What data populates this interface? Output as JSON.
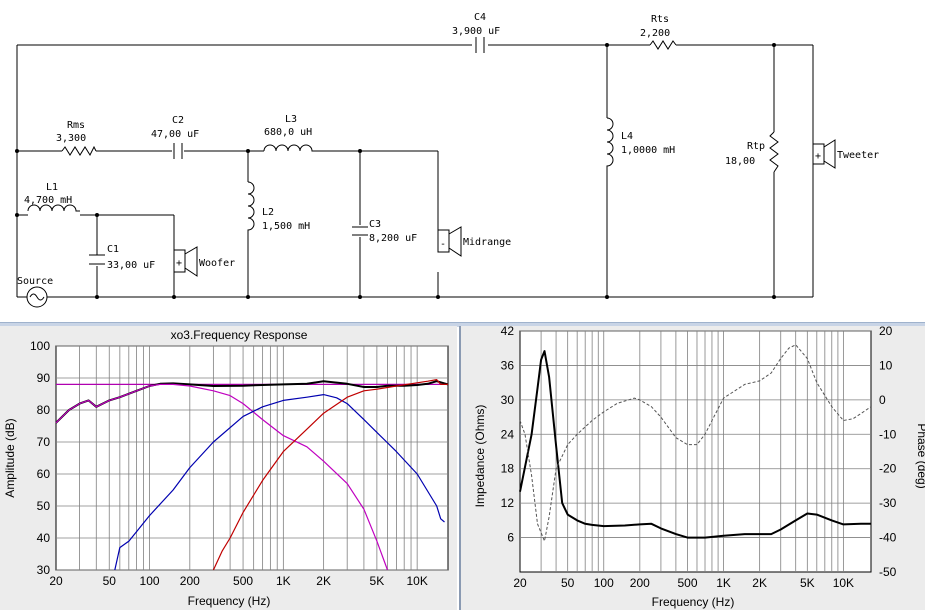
{
  "schematic": {
    "components": [
      {
        "id": "Rms",
        "value": "3,300"
      },
      {
        "id": "C2",
        "value": "47,00 uF"
      },
      {
        "id": "L3",
        "value": "680,0 uH"
      },
      {
        "id": "L1",
        "value": "4,700 mH"
      },
      {
        "id": "C1",
        "value": "33,00 uF"
      },
      {
        "id": "L2",
        "value": "1,500 mH"
      },
      {
        "id": "C3",
        "value": "8,200 uF"
      },
      {
        "id": "C4",
        "value": "3,900 uF"
      },
      {
        "id": "Rts",
        "value": "2,200"
      },
      {
        "id": "L4",
        "value": "1,0000 mH"
      },
      {
        "id": "Rtp",
        "value": "18,00"
      }
    ],
    "source_label": "Source",
    "speakers": [
      "Woofer",
      "Midrange",
      "Tweeter"
    ],
    "polarity": {
      "woofer": "+",
      "midrange": "-",
      "tweeter": "+"
    }
  },
  "chart_data": [
    {
      "type": "line",
      "title": "xo3.Frequency Response",
      "xlabel": "Frequency (Hz)",
      "ylabel": "Amplitude (dB)",
      "xscale": "log",
      "xlim": [
        20,
        17000
      ],
      "ylim": [
        30,
        100
      ],
      "x_ticks": [
        20,
        50,
        100,
        200,
        500,
        1000,
        2000,
        5000,
        10000
      ],
      "x_tick_labels": [
        "20",
        "50",
        "100",
        "200",
        "500",
        "1K",
        "2K",
        "5K",
        "10K"
      ],
      "y_ticks": [
        30,
        40,
        50,
        60,
        70,
        80,
        90,
        100
      ],
      "grid": true,
      "reference_lines": [
        {
          "y": 88,
          "color": "#b000b0"
        }
      ],
      "series": [
        {
          "color": "#000000",
          "x": [
            20,
            25,
            30,
            35,
            40,
            50,
            60,
            80,
            100,
            120,
            150,
            200,
            300,
            500,
            700,
            1000,
            1500,
            2000,
            3000,
            4000,
            5000,
            6000,
            8000,
            10000,
            12000,
            14000,
            17000
          ],
          "y": [
            76,
            80,
            82,
            83,
            81,
            83,
            84,
            86,
            87.5,
            88.2,
            88.3,
            88,
            87.5,
            87.6,
            87.8,
            88,
            88.2,
            89,
            88.2,
            87.2,
            87.2,
            87.6,
            87.6,
            87.8,
            88.2,
            89,
            88
          ]
        },
        {
          "color": "#c000c0",
          "x": [
            20,
            25,
            30,
            35,
            40,
            50,
            60,
            80,
            100,
            120,
            150,
            200,
            300,
            400,
            500,
            700,
            1000,
            1500,
            2000,
            3000,
            4000,
            5000,
            6000
          ],
          "y": [
            76,
            80,
            82,
            83,
            81,
            83,
            84,
            86,
            87.5,
            88,
            88,
            87.5,
            86,
            84.5,
            82,
            77,
            72,
            68.5,
            64,
            57,
            49,
            39,
            30
          ]
        },
        {
          "color": "#0000b0",
          "x": [
            55,
            60,
            70,
            80,
            100,
            150,
            200,
            300,
            500,
            700,
            1000,
            1500,
            2000,
            2500,
            3000,
            4000,
            5000,
            7000,
            10000,
            14000,
            15000,
            16000
          ],
          "y": [
            30,
            37,
            39,
            42,
            47,
            55,
            62,
            70,
            78,
            81,
            83,
            84,
            84.8,
            83.8,
            82,
            77,
            73,
            67,
            60,
            50,
            46,
            45
          ]
        },
        {
          "color": "#c00000",
          "x": [
            300,
            350,
            400,
            500,
            700,
            1000,
            1500,
            2000,
            3000,
            4000,
            5000,
            7000,
            10000,
            12000,
            14000,
            15000,
            17000
          ],
          "y": [
            30,
            36,
            40,
            48,
            58,
            67,
            74,
            79,
            84,
            86,
            86.5,
            87.5,
            88.5,
            89,
            89.5,
            88,
            88
          ]
        }
      ]
    },
    {
      "type": "line",
      "xlabel": "Frequency (Hz)",
      "ylabel": "Impedance (Ohms)",
      "y2label": "Phase (deg)",
      "xscale": "log",
      "xlim": [
        20,
        17000
      ],
      "ylim": [
        0,
        42
      ],
      "y2lim": [
        -50,
        20
      ],
      "x_ticks": [
        20,
        50,
        100,
        200,
        500,
        1000,
        2000,
        5000,
        10000
      ],
      "x_tick_labels": [
        "20",
        "50",
        "100",
        "200",
        "500",
        "1K",
        "2K",
        "5K",
        "10K"
      ],
      "y_ticks": [
        6,
        12,
        18,
        24,
        30,
        36,
        42
      ],
      "y2_ticks": [
        -50,
        -40,
        -30,
        -20,
        -10,
        0,
        10,
        20
      ],
      "grid": true,
      "series": [
        {
          "name": "",
          "axis": "left",
          "style": "solid",
          "color": "#000000",
          "x": [
            20,
            25,
            28,
            30,
            32,
            35,
            40,
            45,
            50,
            60,
            70,
            80,
            100,
            150,
            200,
            250,
            300,
            400,
            500,
            700,
            1000,
            1500,
            2000,
            2500,
            3000,
            4000,
            5000,
            6000,
            8000,
            10000,
            14000,
            17000
          ],
          "y": [
            14,
            24,
            32,
            37,
            38.5,
            34,
            22,
            12,
            10,
            9,
            8.4,
            8.2,
            8.0,
            8.1,
            8.3,
            8.4,
            7.6,
            6.6,
            6.0,
            6.0,
            6.3,
            6.6,
            6.6,
            6.6,
            7.4,
            9.0,
            10.2,
            10.0,
            9.0,
            8.3,
            8.4,
            8.4
          ]
        },
        {
          "name": "",
          "axis": "right",
          "style": "dashed",
          "color": "#555555",
          "x": [
            20,
            22,
            25,
            28,
            32,
            35,
            40,
            50,
            60,
            80,
            100,
            130,
            180,
            200,
            250,
            300,
            400,
            500,
            600,
            700,
            800,
            1000,
            1500,
            2000,
            2500,
            3000,
            3500,
            4000,
            5000,
            6000,
            8000,
            10000,
            12000,
            14000,
            17000
          ],
          "y": [
            -6,
            -10,
            -22,
            -36,
            -41,
            -34,
            -20,
            -13,
            -10,
            -6,
            -3.5,
            -1,
            0.5,
            0,
            -2,
            -5,
            -11,
            -13,
            -13,
            -10,
            -6,
            0.5,
            4.5,
            5.5,
            7.8,
            12,
            15,
            16,
            12,
            5,
            -2,
            -6,
            -5.5,
            -4,
            -2
          ]
        }
      ]
    }
  ]
}
